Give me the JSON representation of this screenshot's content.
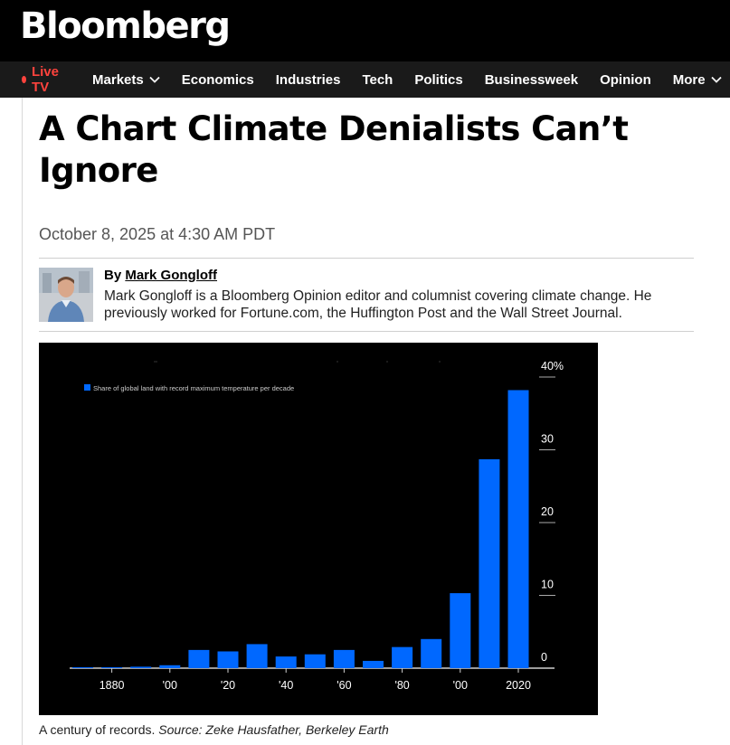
{
  "brand": {
    "logo_text": "Bloomberg"
  },
  "nav": {
    "live_label": "Live TV",
    "items": [
      {
        "label": "Markets",
        "dropdown": true
      },
      {
        "label": "Economics",
        "dropdown": false
      },
      {
        "label": "Industries",
        "dropdown": false
      },
      {
        "label": "Tech",
        "dropdown": false
      },
      {
        "label": "Politics",
        "dropdown": false
      },
      {
        "label": "Businessweek",
        "dropdown": false
      },
      {
        "label": "Opinion",
        "dropdown": false
      },
      {
        "label": "More",
        "dropdown": true
      }
    ]
  },
  "article": {
    "headline": "A Chart Climate Denialists Can’t Ignore",
    "date": "October 8, 2025 at 4:30 AM PDT",
    "byline_prefix": "By ",
    "author": "Mark Gongloff",
    "bio": "Mark Gongloff is a Bloomberg Opinion editor and columnist covering climate change. He previously worked for Fortune.com, the Huffington Post and the Wall Street Journal.",
    "caption_text": "A century of records. ",
    "caption_source": "Source: Zeke Hausfather, Berkeley Earth"
  },
  "colors": {
    "accent_live": "#ff433d",
    "bar": "#0068ff",
    "chart_bg": "#000000"
  },
  "chart_data": {
    "type": "bar",
    "legend": "Share of global land with record maximum temperature per decade",
    "legend_position": "top-left",
    "x": [
      1870,
      1880,
      1890,
      1900,
      1910,
      1920,
      1930,
      1940,
      1950,
      1960,
      1970,
      1980,
      1990,
      2000,
      2010,
      2020
    ],
    "values": [
      0.1,
      0.1,
      0.2,
      0.4,
      2.5,
      2.3,
      3.3,
      1.6,
      1.9,
      2.5,
      1.0,
      2.9,
      4.0,
      10.3,
      28.7,
      38.2
    ],
    "x_tick_labels": [
      {
        "x": 1880,
        "label": "1880"
      },
      {
        "x": 1900,
        "label": "'00"
      },
      {
        "x": 1920,
        "label": "'20"
      },
      {
        "x": 1940,
        "label": "'40"
      },
      {
        "x": 1960,
        "label": "'60"
      },
      {
        "x": 1980,
        "label": "'80"
      },
      {
        "x": 2000,
        "label": "'00"
      },
      {
        "x": 2020,
        "label": "2020"
      }
    ],
    "y_ticks": [
      {
        "value": 0,
        "label": "0"
      },
      {
        "value": 10,
        "label": "10"
      },
      {
        "value": 20,
        "label": "20"
      },
      {
        "value": 30,
        "label": "30"
      },
      {
        "value": 40,
        "label": "40%"
      }
    ],
    "ylim": [
      0,
      40
    ],
    "y_axis_position": "right"
  }
}
